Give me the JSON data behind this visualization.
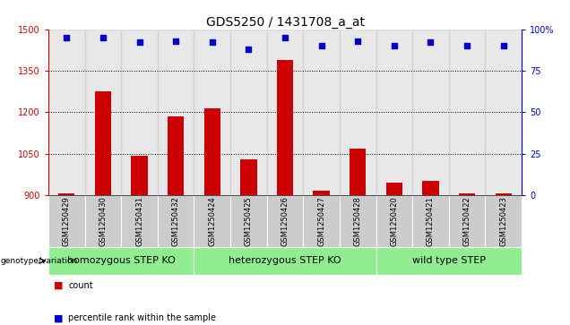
{
  "title": "GDS5250 / 1431708_a_at",
  "samples": [
    "GSM1250429",
    "GSM1250430",
    "GSM1250431",
    "GSM1250432",
    "GSM1250424",
    "GSM1250425",
    "GSM1250426",
    "GSM1250427",
    "GSM1250428",
    "GSM1250420",
    "GSM1250421",
    "GSM1250422",
    "GSM1250423"
  ],
  "counts": [
    905,
    1275,
    1042,
    1185,
    1215,
    1030,
    1390,
    915,
    1068,
    945,
    950,
    905,
    905
  ],
  "percentiles": [
    95,
    95,
    92,
    93,
    92,
    88,
    95,
    90,
    93,
    90,
    92,
    90,
    90
  ],
  "gp_starts": [
    0,
    4,
    9
  ],
  "gp_ends": [
    3,
    8,
    12
  ],
  "gp_labels": [
    "homozygous STEP KO",
    "heterozygous STEP KO",
    "wild type STEP"
  ],
  "ylim_left": [
    900,
    1500
  ],
  "ylim_right": [
    0,
    100
  ],
  "yticks_left": [
    900,
    1050,
    1200,
    1350,
    1500
  ],
  "yticks_right": [
    0,
    25,
    50,
    75,
    100
  ],
  "bar_color": "#cc0000",
  "dot_color": "#0000cc",
  "bar_width": 0.45,
  "bg_color_plot": "#ffffff",
  "bg_color_sample": "#cccccc",
  "green_color": "#90ee90",
  "genotype_label": "genotype/variation",
  "legend_count_label": "count",
  "legend_pct_label": "percentile rank within the sample",
  "title_fontsize": 10,
  "tick_fontsize": 7,
  "sample_fontsize": 6,
  "group_fontsize": 8
}
